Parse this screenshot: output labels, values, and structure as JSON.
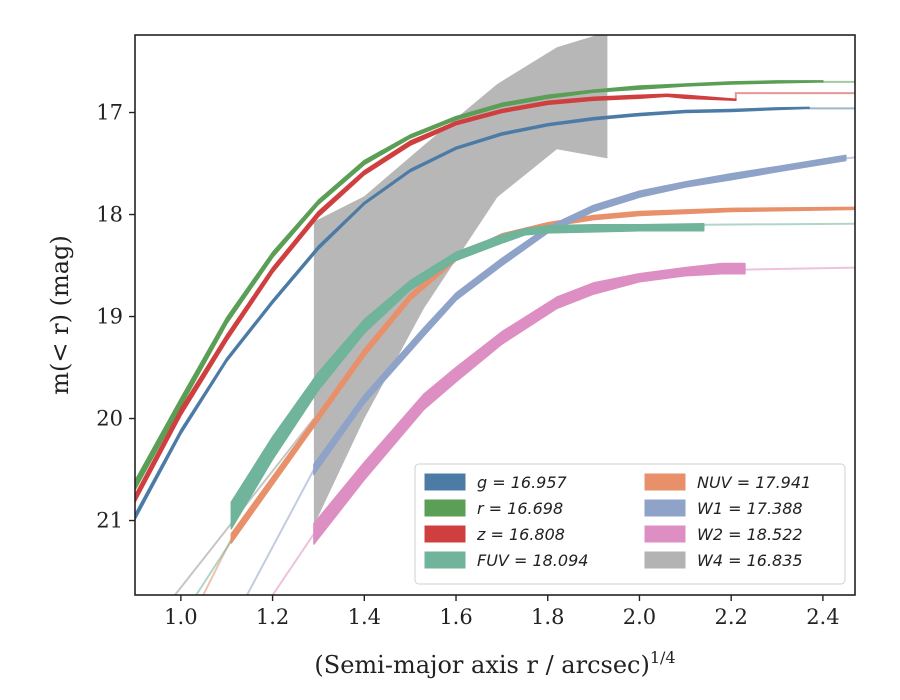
{
  "chart_data": {
    "type": "line",
    "title": "",
    "xlabel": "(Semi-major axis r / arcsec)",
    "xlabel_superscript": "1/4",
    "ylabel": "m(< r) (mag)",
    "xlim": [
      0.9,
      2.47
    ],
    "ylim": [
      21.73,
      16.24
    ],
    "y_inverted": true,
    "grid": false,
    "legend_position": "lower-right",
    "legend_columns": 2,
    "xticks": [
      1.0,
      1.2,
      1.4,
      1.6,
      1.8,
      2.0,
      2.2,
      2.4
    ],
    "xtick_labels": [
      "1.0",
      "1.2",
      "1.4",
      "1.6",
      "1.8",
      "2.0",
      "2.2",
      "2.4"
    ],
    "yticks": [
      17,
      18,
      19,
      20,
      21
    ],
    "ytick_labels": [
      "17",
      "18",
      "19",
      "20",
      "21"
    ],
    "series": [
      {
        "name": "g = 16.957",
        "color": "#4c7ba6",
        "kind": "band",
        "data_x": [
          0.9,
          1.0,
          1.1,
          1.2,
          1.3,
          1.4,
          1.5,
          1.6,
          1.7,
          1.8,
          1.9,
          2.0,
          2.1,
          2.2,
          2.3,
          2.37
        ],
        "data_y_low": [
          20.99,
          20.15,
          19.44,
          18.87,
          18.34,
          17.9,
          17.58,
          17.36,
          17.22,
          17.13,
          17.07,
          17.03,
          17.0,
          16.99,
          16.97,
          16.96
        ],
        "data_y_high": [
          20.94,
          20.11,
          19.41,
          18.84,
          18.31,
          17.88,
          17.56,
          17.34,
          17.2,
          17.11,
          17.05,
          17.01,
          16.98,
          16.97,
          16.955,
          16.95
        ],
        "ext_x": [
          2.37,
          2.47
        ],
        "ext_y": [
          16.96,
          16.96
        ]
      },
      {
        "name": "r = 16.698",
        "color": "#5b9e55",
        "kind": "band",
        "data_x": [
          0.9,
          1.0,
          1.1,
          1.2,
          1.3,
          1.4,
          1.5,
          1.6,
          1.7,
          1.8,
          1.9,
          2.0,
          2.1,
          2.2,
          2.3,
          2.4
        ],
        "data_y_low": [
          20.7,
          19.88,
          19.07,
          18.42,
          17.9,
          17.51,
          17.25,
          17.07,
          16.94,
          16.86,
          16.8,
          16.77,
          16.74,
          16.72,
          16.71,
          16.7
        ],
        "data_y_high": [
          20.61,
          19.8,
          19.01,
          18.37,
          17.86,
          17.47,
          17.22,
          17.04,
          16.91,
          16.83,
          16.78,
          16.74,
          16.72,
          16.7,
          16.69,
          16.69
        ],
        "ext_x": [
          2.4,
          2.47
        ],
        "ext_y": [
          16.7,
          16.7
        ]
      },
      {
        "name": "z = 16.808",
        "color": "#d03f3f",
        "kind": "band",
        "data_x": [
          0.9,
          1.0,
          1.1,
          1.2,
          1.3,
          1.4,
          1.5,
          1.6,
          1.7,
          1.8,
          1.9,
          2.0,
          2.06,
          2.1,
          2.21
        ],
        "data_y_low": [
          20.82,
          19.97,
          19.24,
          18.57,
          18.02,
          17.61,
          17.32,
          17.12,
          17.0,
          16.92,
          16.88,
          16.86,
          16.84,
          16.86,
          16.88
        ],
        "data_y_high": [
          20.75,
          19.9,
          19.18,
          18.52,
          17.97,
          17.57,
          17.28,
          17.09,
          16.97,
          16.89,
          16.85,
          16.83,
          16.82,
          16.83,
          16.87
        ],
        "ext_x": [
          2.21,
          2.47
        ],
        "ext_y": [
          16.81,
          16.81
        ]
      },
      {
        "name": "FUV = 18.094",
        "color": "#6fb49b",
        "kind": "band",
        "data_x": [
          1.11,
          1.2,
          1.3,
          1.4,
          1.5,
          1.6,
          1.7,
          1.75,
          1.8,
          1.9,
          2.0,
          2.14
        ],
        "data_y_low": [
          21.08,
          20.4,
          19.72,
          19.16,
          18.74,
          18.45,
          18.28,
          18.2,
          18.18,
          18.17,
          18.16,
          18.16
        ],
        "data_y_high": [
          20.82,
          20.18,
          19.55,
          19.03,
          18.65,
          18.37,
          18.2,
          18.14,
          18.11,
          18.1,
          18.1,
          18.09
        ],
        "ext_x": [
          0.98,
          1.11,
          2.14,
          2.47
        ],
        "ext_y": [
          22.1,
          21.2,
          18.1,
          18.09
        ]
      },
      {
        "name": "NUV = 17.941",
        "color": "#e8906a",
        "kind": "band",
        "data_x": [
          1.11,
          1.2,
          1.3,
          1.4,
          1.5,
          1.6,
          1.7,
          1.8,
          1.9,
          2.0,
          2.2,
          2.47
        ],
        "data_y_low": [
          21.22,
          20.65,
          20.02,
          19.39,
          18.84,
          18.45,
          18.24,
          18.12,
          18.05,
          18.01,
          17.97,
          17.95
        ],
        "data_y_high": [
          21.13,
          20.57,
          19.95,
          19.32,
          18.78,
          18.4,
          18.19,
          18.08,
          18.01,
          17.97,
          17.94,
          17.93
        ],
        "ext_x": [
          1.03,
          1.11
        ],
        "ext_y": [
          21.9,
          21.18
        ]
      },
      {
        "name": "W1 = 17.388",
        "color": "#8fa2c8",
        "kind": "band",
        "data_x": [
          1.29,
          1.4,
          1.53,
          1.6,
          1.7,
          1.8,
          1.9,
          2.0,
          2.1,
          2.2,
          2.3,
          2.45
        ],
        "data_y_low": [
          20.55,
          19.85,
          19.19,
          18.84,
          18.5,
          18.18,
          17.97,
          17.83,
          17.73,
          17.66,
          17.58,
          17.47
        ],
        "data_y_high": [
          20.45,
          19.77,
          19.11,
          18.77,
          18.43,
          18.12,
          17.91,
          17.77,
          17.68,
          17.6,
          17.53,
          17.42
        ],
        "ext_x": [
          1.13,
          1.29,
          2.45,
          2.47
        ],
        "ext_y": [
          21.85,
          20.5,
          17.45,
          17.44
        ]
      },
      {
        "name": "W2 = 18.522",
        "color": "#dd8fc3",
        "kind": "band",
        "data_x": [
          1.29,
          1.4,
          1.53,
          1.6,
          1.7,
          1.82,
          1.9,
          2.0,
          2.1,
          2.18,
          2.23
        ],
        "data_y_low": [
          21.23,
          20.6,
          19.91,
          19.64,
          19.27,
          18.92,
          18.78,
          18.66,
          18.6,
          18.58,
          18.58
        ],
        "data_y_high": [
          21.03,
          20.43,
          19.76,
          19.5,
          19.15,
          18.81,
          18.67,
          18.58,
          18.52,
          18.48,
          18.48
        ],
        "ext_x": [
          1.13,
          1.29,
          2.23,
          2.47
        ],
        "ext_y": [
          22.2,
          21.13,
          18.54,
          18.52
        ]
      },
      {
        "name": "W4 = 16.835",
        "color": "#b3b3b3",
        "kind": "envelope",
        "data_x": [
          1.29,
          1.4,
          1.53,
          1.69,
          1.82,
          1.93
        ],
        "data_y_low": [
          21.05,
          20.0,
          18.92,
          17.83,
          17.36,
          17.45
        ],
        "data_y_high": [
          18.07,
          17.82,
          17.32,
          16.72,
          16.36,
          16.21
        ],
        "ext_x": [
          0.94,
          1.29
        ],
        "ext_y": [
          22.0,
          20.0
        ]
      }
    ]
  }
}
